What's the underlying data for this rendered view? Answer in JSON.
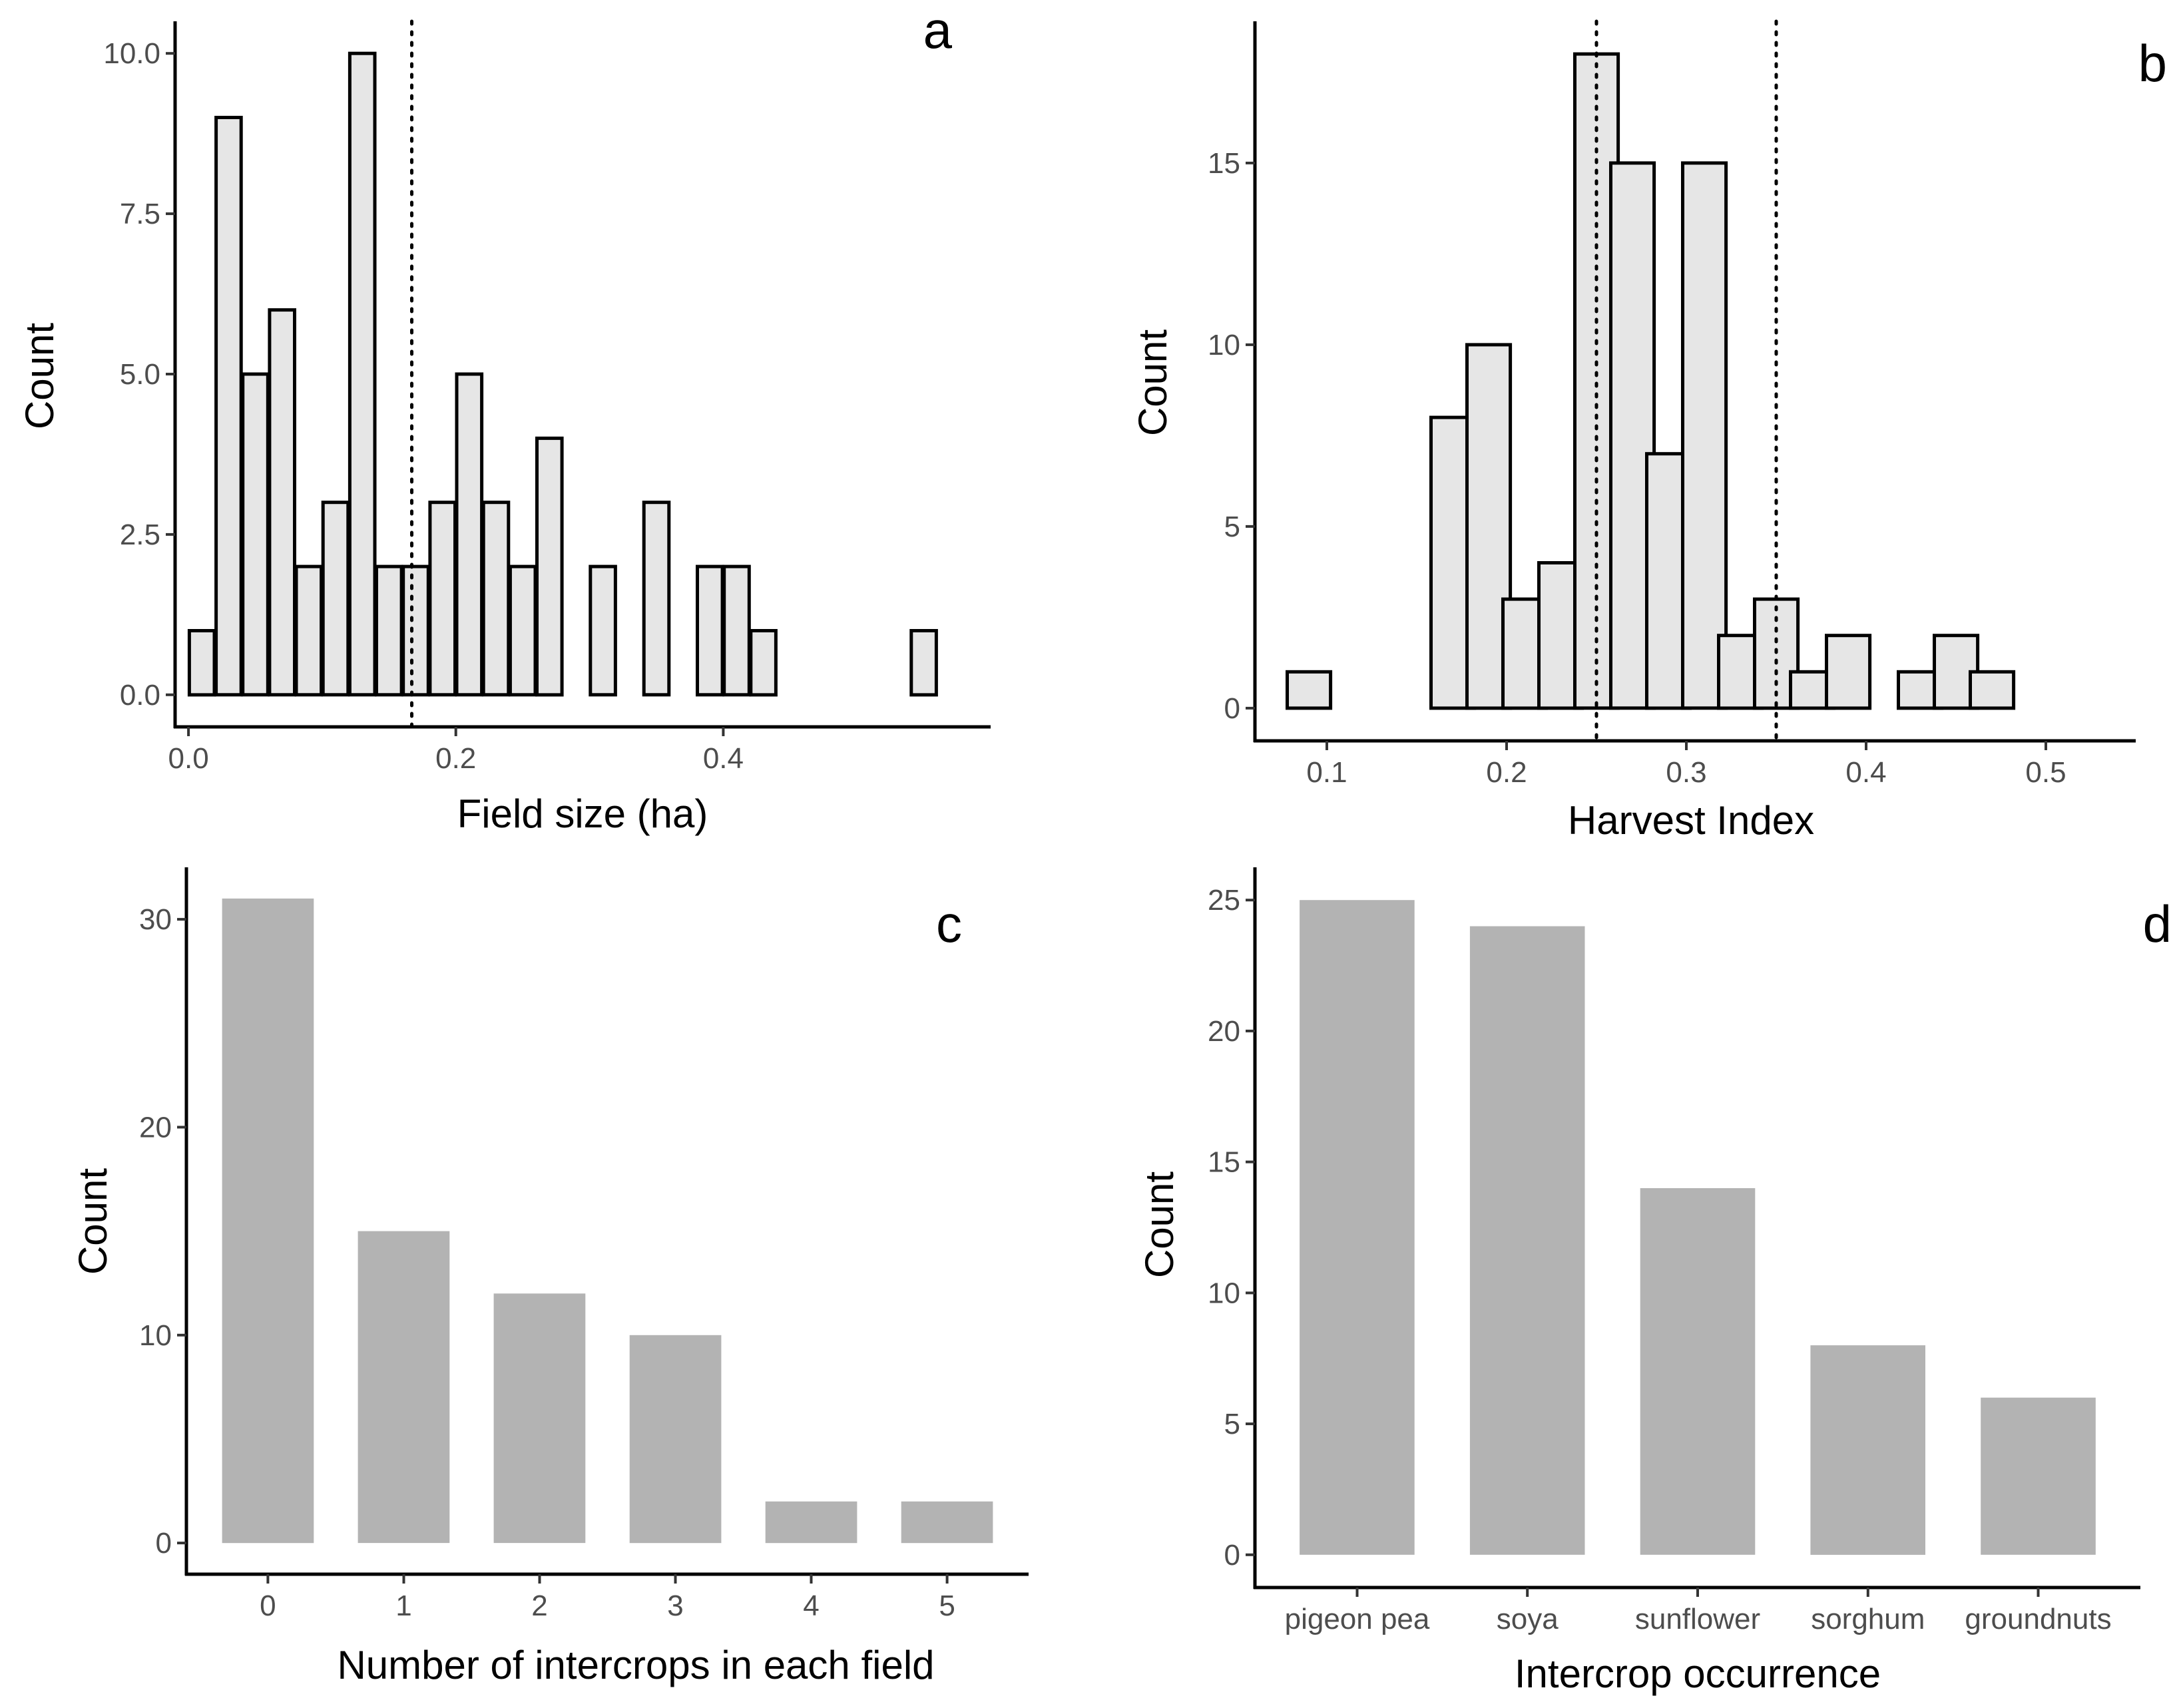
{
  "figure": {
    "colors": {
      "hist_fill": "#e6e6e6",
      "hist_stroke": "#000000",
      "bar_fill": "#b3b3b3",
      "axis": "#000000",
      "tick_text": "#4d4d4d"
    }
  },
  "chart_data": [
    {
      "id": "a",
      "type": "bar",
      "subtype": "histogram",
      "panel_label": "a",
      "xlabel": "Field size (ha)",
      "ylabel": "Count",
      "x": [
        0.01,
        0.03,
        0.05,
        0.07,
        0.09,
        0.11,
        0.13,
        0.15,
        0.17,
        0.19,
        0.21,
        0.23,
        0.25,
        0.27,
        0.29,
        0.31,
        0.33,
        0.35,
        0.37,
        0.39,
        0.41,
        0.43,
        0.45,
        0.47,
        0.49,
        0.51,
        0.53,
        0.55
      ],
      "values": [
        1,
        9,
        5,
        6,
        2,
        3,
        10,
        2,
        2,
        3,
        5,
        3,
        2,
        4,
        0,
        2,
        0,
        3,
        0,
        2,
        2,
        1,
        0,
        0,
        0,
        0,
        0,
        1
      ],
      "bin_width": 0.0187,
      "xlim": [
        -0.01,
        0.6
      ],
      "ylim": [
        -0.5,
        10.5
      ],
      "xticks": [
        0.0,
        0.2,
        0.4
      ],
      "xtick_labels": [
        "0.0",
        "0.2",
        "0.4"
      ],
      "yticks": [
        0,
        2.5,
        5,
        7.5,
        10
      ],
      "ytick_labels": [
        "0.0",
        "2.5",
        "5.0",
        "7.5",
        "10.0"
      ],
      "vlines": [
        0.167
      ],
      "grid": false
    },
    {
      "id": "b",
      "type": "bar",
      "subtype": "histogram",
      "panel_label": "b",
      "xlabel": "Harvest Index",
      "ylabel": "Count",
      "x": [
        0.09,
        0.11,
        0.13,
        0.15,
        0.17,
        0.19,
        0.21,
        0.23,
        0.25,
        0.27,
        0.29,
        0.31,
        0.33,
        0.35,
        0.37,
        0.39,
        0.41,
        0.43,
        0.45,
        0.47,
        0.49,
        0.51
      ],
      "values": [
        1,
        0,
        0,
        0,
        8,
        10,
        3,
        4,
        18,
        15,
        7,
        15,
        2,
        3,
        1,
        2,
        0,
        1,
        2,
        1,
        0,
        0
      ],
      "bin_width": 0.0241,
      "xlim": [
        0.06,
        0.55
      ],
      "ylim": [
        -0.9,
        18.9
      ],
      "xticks": [
        0.1,
        0.2,
        0.3,
        0.4,
        0.5
      ],
      "xtick_labels": [
        "0.1",
        "0.2",
        "0.3",
        "0.4",
        "0.5"
      ],
      "yticks": [
        0,
        5,
        10,
        15
      ],
      "ytick_labels": [
        "0",
        "5",
        "10",
        "15"
      ],
      "vlines": [
        0.25,
        0.35
      ],
      "grid": false
    },
    {
      "id": "c",
      "type": "bar",
      "panel_label": "c",
      "xlabel": "Number of intercrops in each field",
      "ylabel": "Count",
      "categories": [
        "0",
        "1",
        "2",
        "3",
        "4",
        "5"
      ],
      "values": [
        31,
        15,
        12,
        10,
        2,
        2
      ],
      "ylim": [
        -1.5,
        32.5
      ],
      "yticks": [
        0,
        10,
        20,
        30
      ],
      "ytick_labels": [
        "0",
        "10",
        "20",
        "30"
      ],
      "grid": false
    },
    {
      "id": "d",
      "type": "bar",
      "panel_label": "d",
      "xlabel": "Intercrop occurrence",
      "ylabel": "Count",
      "categories": [
        "pigeon pea",
        "soya",
        "sunflower",
        "sorghum",
        "groundnuts"
      ],
      "values": [
        25,
        24,
        14,
        8,
        6
      ],
      "ylim": [
        -1.25,
        26.25
      ],
      "yticks": [
        0,
        5,
        10,
        15,
        20,
        25
      ],
      "ytick_labels": [
        "0",
        "5",
        "10",
        "15",
        "20",
        "25"
      ],
      "grid": false
    }
  ]
}
